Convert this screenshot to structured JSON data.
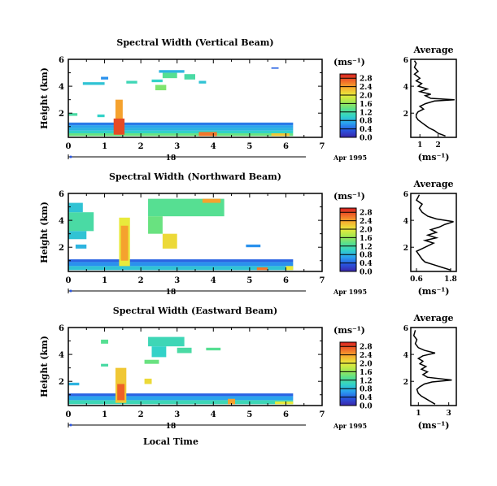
{
  "figure": {
    "colorbar_unit": "(ms⁻¹)",
    "profile_title": "Average",
    "profile_xlabel": "(ms⁻¹)",
    "date_day": "18",
    "date_label": "Apr 1995",
    "bottom_xlabel": "Local Time"
  },
  "colors": {
    "ramp": [
      "#3a25a8",
      "#2a55e0",
      "#2aa0f0",
      "#32d2c8",
      "#5ae08c",
      "#a6e850",
      "#e8ea3c",
      "#f6b030",
      "#f06828",
      "#d82020"
    ]
  },
  "chart_data": [
    {
      "type": "heatmap",
      "title": "Spectral Width (Vertical Beam)",
      "xlabel": "",
      "ylabel": "Height (km)",
      "x_ticks": [
        "0",
        "1",
        "2",
        "3",
        "4",
        "5",
        "6",
        "7"
      ],
      "xlim": [
        0,
        7
      ],
      "y_ticks": [
        "2",
        "4",
        "6"
      ],
      "ylim": [
        0.2,
        6
      ],
      "colorbar": {
        "ticks": [
          "0.0",
          "0.4",
          "0.8",
          "1.2",
          "1.6",
          "2.0",
          "2.4",
          "2.8"
        ],
        "range": [
          0,
          3.0
        ]
      },
      "cells": [
        {
          "x": [
            0.0,
            6.2
          ],
          "y": [
            0.3,
            0.5
          ],
          "v": 1.4
        },
        {
          "x": [
            0.0,
            6.2
          ],
          "y": [
            0.5,
            0.7
          ],
          "v": 1.0
        },
        {
          "x": [
            0.0,
            6.2
          ],
          "y": [
            0.7,
            0.9
          ],
          "v": 0.8
        },
        {
          "x": [
            0.0,
            6.2
          ],
          "y": [
            0.9,
            1.1
          ],
          "v": 0.7
        },
        {
          "x": [
            0.0,
            6.2
          ],
          "y": [
            1.1,
            1.3
          ],
          "v": 0.5
        },
        {
          "x": [
            1.3,
            1.5
          ],
          "y": [
            0.4,
            3.0
          ],
          "v": 2.4
        },
        {
          "x": [
            1.25,
            1.55
          ],
          "y": [
            0.4,
            1.6
          ],
          "v": 2.8
        },
        {
          "x": [
            3.6,
            4.1
          ],
          "y": [
            0.3,
            0.6
          ],
          "v": 2.6
        },
        {
          "x": [
            5.6,
            6.1
          ],
          "y": [
            0.3,
            0.5
          ],
          "v": 2.2
        },
        {
          "x": [
            0.0,
            0.25
          ],
          "y": [
            1.8,
            2.0
          ],
          "v": 1.2
        },
        {
          "x": [
            0.8,
            1.0
          ],
          "y": [
            1.7,
            1.9
          ],
          "v": 1.0
        },
        {
          "x": [
            0.4,
            1.0
          ],
          "y": [
            4.1,
            4.3
          ],
          "v": 0.9
        },
        {
          "x": [
            0.9,
            1.1
          ],
          "y": [
            4.5,
            4.7
          ],
          "v": 0.6
        },
        {
          "x": [
            1.6,
            1.9
          ],
          "y": [
            4.2,
            4.4
          ],
          "v": 1.1
        },
        {
          "x": [
            2.3,
            2.6
          ],
          "y": [
            4.3,
            4.5
          ],
          "v": 1.0
        },
        {
          "x": [
            2.5,
            3.2
          ],
          "y": [
            5.0,
            5.2
          ],
          "v": 0.8
        },
        {
          "x": [
            2.6,
            3.0
          ],
          "y": [
            4.6,
            5.0
          ],
          "v": 1.3
        },
        {
          "x": [
            2.4,
            2.7
          ],
          "y": [
            3.7,
            4.1
          ],
          "v": 1.5
        },
        {
          "x": [
            3.2,
            3.5
          ],
          "y": [
            4.5,
            4.9
          ],
          "v": 1.2
        },
        {
          "x": [
            3.6,
            3.8
          ],
          "y": [
            4.2,
            4.4
          ],
          "v": 0.9
        },
        {
          "x": [
            5.6,
            5.8
          ],
          "y": [
            5.3,
            5.4
          ],
          "v": 0.4
        }
      ],
      "profile": {
        "x_ticks": [
          "1",
          "2"
        ],
        "xlim": [
          0.5,
          3.0
        ],
        "y_ticks": [
          "2",
          "4",
          "6"
        ],
        "ylim": [
          0.2,
          6
        ],
        "points": [
          [
            2.4,
            0.3
          ],
          [
            2.0,
            0.5
          ],
          [
            1.8,
            0.7
          ],
          [
            1.5,
            0.9
          ],
          [
            1.3,
            1.1
          ],
          [
            1.1,
            1.3
          ],
          [
            0.9,
            1.5
          ],
          [
            0.8,
            1.7
          ],
          [
            0.8,
            1.9
          ],
          [
            0.9,
            2.1
          ],
          [
            1.2,
            2.3
          ],
          [
            1.0,
            2.5
          ],
          [
            1.3,
            2.7
          ],
          [
            1.8,
            2.9
          ],
          [
            2.9,
            3.0
          ],
          [
            1.6,
            3.1
          ],
          [
            1.3,
            3.3
          ],
          [
            1.6,
            3.4
          ],
          [
            1.0,
            3.6
          ],
          [
            1.4,
            3.8
          ],
          [
            0.9,
            4.0
          ],
          [
            1.1,
            4.2
          ],
          [
            0.8,
            4.4
          ],
          [
            1.0,
            4.6
          ],
          [
            0.7,
            4.9
          ],
          [
            0.9,
            5.1
          ],
          [
            0.7,
            5.4
          ],
          [
            0.8,
            5.7
          ],
          [
            0.7,
            5.9
          ]
        ]
      }
    },
    {
      "type": "heatmap",
      "title": "Spectral Width (Northward Beam)",
      "xlabel": "",
      "ylabel": "Height (km)",
      "x_ticks": [
        "0",
        "1",
        "2",
        "3",
        "4",
        "5",
        "6",
        "7"
      ],
      "xlim": [
        0,
        7
      ],
      "y_ticks": [
        "2",
        "4",
        "6"
      ],
      "ylim": [
        0.2,
        6
      ],
      "colorbar": {
        "ticks": [
          "0.0",
          "0.4",
          "0.8",
          "1.2",
          "1.6",
          "2.0",
          "2.4",
          "2.8"
        ],
        "range": [
          0,
          3.0
        ]
      },
      "cells": [
        {
          "x": [
            0.0,
            6.2
          ],
          "y": [
            0.3,
            0.6
          ],
          "v": 0.9
        },
        {
          "x": [
            0.0,
            6.2
          ],
          "y": [
            0.6,
            0.9
          ],
          "v": 0.6
        },
        {
          "x": [
            0.0,
            6.2
          ],
          "y": [
            0.9,
            1.1
          ],
          "v": 0.4
        },
        {
          "x": [
            1.4,
            1.7
          ],
          "y": [
            0.6,
            4.2
          ],
          "v": 2.0
        },
        {
          "x": [
            1.45,
            1.65
          ],
          "y": [
            1.0,
            3.6
          ],
          "v": 2.4
        },
        {
          "x": [
            0.0,
            0.7
          ],
          "y": [
            3.2,
            4.6
          ],
          "v": 1.2
        },
        {
          "x": [
            0.0,
            0.5
          ],
          "y": [
            2.6,
            3.2
          ],
          "v": 0.9
        },
        {
          "x": [
            0.2,
            0.5
          ],
          "y": [
            1.9,
            2.2
          ],
          "v": 0.8
        },
        {
          "x": [
            0.0,
            0.4
          ],
          "y": [
            4.6,
            5.3
          ],
          "v": 0.9
        },
        {
          "x": [
            2.2,
            4.3
          ],
          "y": [
            4.3,
            5.6
          ],
          "v": 1.3
        },
        {
          "x": [
            2.2,
            2.6
          ],
          "y": [
            3.0,
            4.3
          ],
          "v": 1.4
        },
        {
          "x": [
            2.6,
            3.0
          ],
          "y": [
            1.9,
            3.0
          ],
          "v": 2.1
        },
        {
          "x": [
            3.7,
            4.2
          ],
          "y": [
            5.3,
            5.6
          ],
          "v": 2.4
        },
        {
          "x": [
            4.9,
            5.3
          ],
          "y": [
            2.0,
            2.2
          ],
          "v": 0.6
        },
        {
          "x": [
            5.2,
            5.5
          ],
          "y": [
            0.3,
            0.5
          ],
          "v": 2.6
        },
        {
          "x": [
            6.0,
            6.2
          ],
          "y": [
            0.3,
            0.6
          ],
          "v": 2.0
        }
      ],
      "profile": {
        "x_ticks": [
          "0.6",
          "1.8"
        ],
        "xlim": [
          0.4,
          2.0
        ],
        "y_ticks": [
          "2",
          "4",
          "6"
        ],
        "ylim": [
          0.2,
          6
        ],
        "points": [
          [
            1.8,
            0.3
          ],
          [
            1.5,
            0.5
          ],
          [
            1.2,
            0.7
          ],
          [
            0.9,
            0.9
          ],
          [
            0.8,
            1.1
          ],
          [
            0.7,
            1.4
          ],
          [
            0.6,
            1.7
          ],
          [
            0.8,
            1.9
          ],
          [
            1.0,
            2.1
          ],
          [
            1.2,
            2.3
          ],
          [
            0.9,
            2.5
          ],
          [
            1.3,
            2.7
          ],
          [
            1.0,
            2.9
          ],
          [
            1.3,
            3.1
          ],
          [
            1.1,
            3.3
          ],
          [
            1.4,
            3.5
          ],
          [
            1.6,
            3.7
          ],
          [
            1.9,
            3.9
          ],
          [
            1.3,
            4.1
          ],
          [
            1.0,
            4.3
          ],
          [
            0.8,
            4.6
          ],
          [
            0.7,
            4.9
          ],
          [
            0.8,
            5.2
          ],
          [
            0.6,
            5.5
          ],
          [
            0.7,
            5.9
          ]
        ]
      }
    },
    {
      "type": "heatmap",
      "title": "Spectral Width (Eastward Beam)",
      "xlabel": "Local Time",
      "ylabel": "Height (km)",
      "x_ticks": [
        "0",
        "1",
        "2",
        "3",
        "4",
        "5",
        "6",
        "7"
      ],
      "xlim": [
        0,
        7
      ],
      "y_ticks": [
        "2",
        "4",
        "6"
      ],
      "ylim": [
        0.2,
        6
      ],
      "colorbar": {
        "ticks": [
          "0.0",
          "0.4",
          "0.8",
          "1.2",
          "1.6",
          "2.0",
          "2.4",
          "2.8"
        ],
        "range": [
          0,
          3.0
        ]
      },
      "cells": [
        {
          "x": [
            0.0,
            6.2
          ],
          "y": [
            0.3,
            0.6
          ],
          "v": 1.1
        },
        {
          "x": [
            0.0,
            6.2
          ],
          "y": [
            0.6,
            0.9
          ],
          "v": 0.7
        },
        {
          "x": [
            0.0,
            6.2
          ],
          "y": [
            0.9,
            1.1
          ],
          "v": 0.4
        },
        {
          "x": [
            1.3,
            1.6
          ],
          "y": [
            0.4,
            3.0
          ],
          "v": 2.2
        },
        {
          "x": [
            1.35,
            1.55
          ],
          "y": [
            0.6,
            1.8
          ],
          "v": 2.7
        },
        {
          "x": [
            0.0,
            0.3
          ],
          "y": [
            1.7,
            1.9
          ],
          "v": 0.8
        },
        {
          "x": [
            0.9,
            1.1
          ],
          "y": [
            3.1,
            3.3
          ],
          "v": 1.2
        },
        {
          "x": [
            0.9,
            1.1
          ],
          "y": [
            4.8,
            5.1
          ],
          "v": 1.3
        },
        {
          "x": [
            2.1,
            2.5
          ],
          "y": [
            3.3,
            3.6
          ],
          "v": 1.4
        },
        {
          "x": [
            2.1,
            2.3
          ],
          "y": [
            1.8,
            2.2
          ],
          "v": 2.1
        },
        {
          "x": [
            2.2,
            3.2
          ],
          "y": [
            4.6,
            5.3
          ],
          "v": 1.1
        },
        {
          "x": [
            2.3,
            2.7
          ],
          "y": [
            3.8,
            4.6
          ],
          "v": 1.0
        },
        {
          "x": [
            3.0,
            3.4
          ],
          "y": [
            4.1,
            4.5
          ],
          "v": 1.2
        },
        {
          "x": [
            3.8,
            4.2
          ],
          "y": [
            4.3,
            4.5
          ],
          "v": 1.3
        },
        {
          "x": [
            4.4,
            4.6
          ],
          "y": [
            0.3,
            0.7
          ],
          "v": 2.4
        },
        {
          "x": [
            5.7,
            6.2
          ],
          "y": [
            0.3,
            0.5
          ],
          "v": 2.0
        }
      ],
      "profile": {
        "x_ticks": [
          "1",
          "3"
        ],
        "xlim": [
          0.5,
          3.5
        ],
        "y_ticks": [
          "2",
          "4",
          "6"
        ],
        "ylim": [
          0.2,
          6
        ],
        "points": [
          [
            2.1,
            0.3
          ],
          [
            1.8,
            0.5
          ],
          [
            1.5,
            0.7
          ],
          [
            1.2,
            0.9
          ],
          [
            1.0,
            1.1
          ],
          [
            0.9,
            1.4
          ],
          [
            1.1,
            1.6
          ],
          [
            1.4,
            1.8
          ],
          [
            1.9,
            1.95
          ],
          [
            3.2,
            2.1
          ],
          [
            1.6,
            2.3
          ],
          [
            1.3,
            2.5
          ],
          [
            1.6,
            2.7
          ],
          [
            1.2,
            2.9
          ],
          [
            1.5,
            3.1
          ],
          [
            1.1,
            3.3
          ],
          [
            1.3,
            3.5
          ],
          [
            1.0,
            3.7
          ],
          [
            1.3,
            3.9
          ],
          [
            2.1,
            4.1
          ],
          [
            1.4,
            4.3
          ],
          [
            1.0,
            4.5
          ],
          [
            0.8,
            4.8
          ],
          [
            0.9,
            5.1
          ],
          [
            0.7,
            5.4
          ],
          [
            0.8,
            5.8
          ]
        ]
      }
    }
  ]
}
